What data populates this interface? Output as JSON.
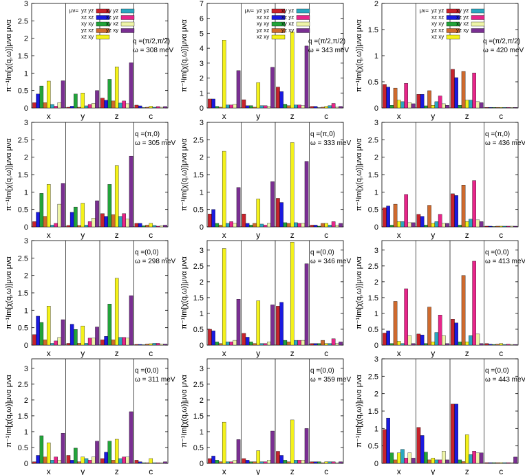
{
  "legend": {
    "header": "μν=",
    "entries": [
      {
        "label": "yz yz",
        "color": "#c8232c"
      },
      {
        "label": "xz xz",
        "color": "#1a1ae0"
      },
      {
        "label": "xy xy",
        "color": "#22a33a"
      },
      {
        "label": "yz xz",
        "color": "#cf6a2e"
      },
      {
        "label": "xz xy",
        "color": "#f4f21a"
      },
      {
        "label": "xy yz",
        "color": "#2aa7c0"
      },
      {
        "label": "xz yz",
        "color": "#e8258a"
      },
      {
        "label": "xy xz",
        "color": "#eef5a8"
      },
      {
        "label": "yz xy",
        "color": "#7a2f92"
      }
    ]
  },
  "chart_data": [
    {
      "type": "bar",
      "row": 0,
      "col": 0,
      "ylabel": "π⁻¹Im[χ(q,ω)]μνα μνα",
      "ylim": [
        0,
        3
      ],
      "yticks": [
        "0",
        "0.5",
        "1",
        "1.5",
        "2",
        "2.5",
        "3"
      ],
      "categories": [
        "x",
        "y",
        "z",
        "c"
      ],
      "annotation": [
        "q =(π/2,π/2)",
        "ω = 308 meV"
      ],
      "legend": "cols",
      "values": [
        [
          0.15,
          0.4,
          0.63,
          0.15,
          0.77,
          0.1,
          0.05,
          0.15,
          0.78
        ],
        [
          0.02,
          0.05,
          0.4,
          0.02,
          0.43,
          0.06,
          0.1,
          0.13,
          0.5
        ],
        [
          0.28,
          0.22,
          0.82,
          0.2,
          1.18,
          0.14,
          0.2,
          0.12,
          1.3
        ],
        [
          0.08,
          0.06,
          0.01,
          0.02,
          0.05,
          0.02,
          0.04,
          0.02,
          0.04
        ]
      ]
    },
    {
      "type": "bar",
      "row": 0,
      "col": 1,
      "ylabel": "π⁻¹Im[χ(q,ω)]μνα μνα",
      "ylim": [
        0,
        7
      ],
      "yticks": [
        "0",
        "1",
        "2",
        "3",
        "4",
        "5",
        "6",
        "7"
      ],
      "categories": [
        "x",
        "y",
        "z",
        "c"
      ],
      "annotation": [
        "q =(π/2,π/2)",
        "ω = 343 meV"
      ],
      "legend": "cols",
      "values": [
        [
          0.6,
          0.6,
          0.1,
          0.05,
          4.55,
          0.2,
          0.2,
          0.25,
          2.5
        ],
        [
          0.55,
          0.15,
          0.15,
          0.05,
          1.7,
          0.15,
          0.15,
          0.1,
          2.72
        ],
        [
          1.4,
          1.1,
          0.25,
          0.15,
          5.1,
          0.2,
          0.2,
          0.15,
          4.15
        ],
        [
          0.1,
          0.1,
          0.02,
          0.05,
          0.1,
          0.15,
          0.3,
          0.05,
          0.1
        ]
      ]
    },
    {
      "type": "bar",
      "row": 0,
      "col": 2,
      "ylabel": "π⁻¹Im[χ(q,ω)]μνα μνα",
      "ylim": [
        0,
        2
      ],
      "yticks": [
        "0",
        "0.5",
        "1",
        "1.5",
        "2"
      ],
      "categories": [
        "x",
        "y",
        "z",
        "c"
      ],
      "annotation": [
        "q =(π/2,π/2)",
        "ω = 420 meV"
      ],
      "legend": "cols",
      "values": [
        [
          0.45,
          0.4,
          0.05,
          0.38,
          0.15,
          0.12,
          0.47,
          0.1,
          0.08
        ],
        [
          0.26,
          0.26,
          0.04,
          0.33,
          0.05,
          0.12,
          0.23,
          0.08,
          0.05
        ],
        [
          0.74,
          0.58,
          0.05,
          0.7,
          0.15,
          0.15,
          0.67,
          0.12,
          0.1
        ],
        [
          0.01,
          0.01,
          0.01,
          0.01,
          0.01,
          0.01,
          0.01,
          0.01,
          0.01
        ]
      ]
    },
    {
      "type": "bar",
      "row": 1,
      "col": 0,
      "ylabel": "π⁻¹Im[χ(q,ω)]μνα μνα",
      "ylim": [
        0,
        3
      ],
      "yticks": [
        "0",
        "0.5",
        "1",
        "1.5",
        "2",
        "2.5",
        "3"
      ],
      "categories": [
        "x",
        "y",
        "z",
        "c"
      ],
      "annotation": [
        "q =(π,0)",
        "ω = 305 meV"
      ],
      "legend": "",
      "values": [
        [
          0.15,
          0.42,
          0.96,
          0.3,
          1.22,
          0.05,
          0.1,
          0.65,
          1.25
        ],
        [
          0.04,
          0.42,
          0.57,
          0.04,
          0.68,
          0.05,
          0.15,
          0.25,
          0.75
        ],
        [
          0.38,
          0.3,
          1.22,
          0.35,
          1.76,
          0.3,
          0.38,
          0.22,
          2.03
        ],
        [
          0.1,
          0.1,
          0.03,
          0.05,
          0.1,
          0.04,
          0.02,
          0.03,
          0.05
        ]
      ]
    },
    {
      "type": "bar",
      "row": 1,
      "col": 1,
      "ylabel": "π⁻¹Im[χ(q,ω)]μνα μνα",
      "ylim": [
        0,
        3
      ],
      "yticks": [
        "0",
        "0.5",
        "1",
        "1.5",
        "2",
        "2.5",
        "3"
      ],
      "categories": [
        "x",
        "y",
        "z",
        "c"
      ],
      "annotation": [
        "q =(π,0)",
        "ω = 333 meV"
      ],
      "legend": "",
      "values": [
        [
          0.37,
          0.5,
          0.1,
          0.05,
          2.17,
          0.1,
          0.15,
          0.1,
          1.13
        ],
        [
          0.37,
          0.1,
          0.05,
          0.1,
          0.8,
          0.08,
          0.05,
          0.1,
          1.3
        ],
        [
          0.82,
          0.7,
          0.12,
          0.1,
          2.42,
          0.12,
          0.1,
          0.1,
          1.88
        ],
        [
          0.05,
          0.05,
          0.02,
          0.1,
          0.1,
          0.05,
          0.15,
          0.05,
          0.1
        ]
      ]
    },
    {
      "type": "bar",
      "row": 1,
      "col": 2,
      "ylabel": "π⁻¹Im[χ(q,ω)]μνα μνα",
      "ylim": [
        0,
        3
      ],
      "yticks": [
        "0",
        "0.5",
        "1",
        "1.5",
        "2",
        "2.5",
        "3"
      ],
      "categories": [
        "x",
        "y",
        "z",
        "c"
      ],
      "annotation": [
        "q =(π,0)",
        "ω = 436 meV"
      ],
      "legend": "",
      "values": [
        [
          0.55,
          0.6,
          0.05,
          0.65,
          0.15,
          0.15,
          0.93,
          0.12,
          0.12
        ],
        [
          0.36,
          0.3,
          0.05,
          0.62,
          0.1,
          0.15,
          0.36,
          0.1,
          0.1
        ],
        [
          0.95,
          0.9,
          0.05,
          1.2,
          0.15,
          0.22,
          1.33,
          0.2,
          0.15
        ],
        [
          0.02,
          0.02,
          0.01,
          0.02,
          0.02,
          0.02,
          0.02,
          0.02,
          0.02
        ]
      ]
    },
    {
      "type": "bar",
      "row": 2,
      "col": 0,
      "ylabel": "π⁻¹Im[χ(q,ω)]μνα μνα",
      "ylim": [
        0,
        3
      ],
      "yticks": [
        "0",
        "0.5",
        "1",
        "1.5",
        "2",
        "2.5",
        "3"
      ],
      "categories": [
        "x",
        "y",
        "z",
        "c"
      ],
      "annotation": [
        "q =(0,0)",
        "ω = 298 meV"
      ],
      "legend": "",
      "values": [
        [
          0.3,
          0.83,
          0.65,
          0.15,
          1.12,
          0.05,
          0.12,
          0.22,
          0.73
        ],
        [
          0.05,
          0.6,
          0.45,
          0.05,
          0.55,
          0.05,
          0.2,
          0.2,
          0.52
        ],
        [
          0.15,
          0.25,
          1.18,
          0.15,
          1.92,
          0.22,
          0.22,
          0.2,
          1.42
        ],
        [
          0.02,
          0.02,
          0.01,
          0.03,
          0.04,
          0.05,
          0.05,
          0.03,
          0.03
        ]
      ]
    },
    {
      "type": "bar",
      "row": 2,
      "col": 1,
      "ylabel": "π⁻¹Im[χ(q,ω)]μνα μνα",
      "ylim": [
        0,
        3.3
      ],
      "yticks": [
        "0",
        "0.5",
        "1",
        "1.5",
        "2",
        "2.5",
        "3"
      ],
      "categories": [
        "x",
        "y",
        "z",
        "c"
      ],
      "annotation": [
        "q =(0,0)",
        "ω = 346 meV"
      ],
      "legend": "",
      "values": [
        [
          0.5,
          0.45,
          0.1,
          0.05,
          3.05,
          0.1,
          0.1,
          0.15,
          1.45
        ],
        [
          0.37,
          0.25,
          0.1,
          0.05,
          1.4,
          0.05,
          0.05,
          0.1,
          1.27
        ],
        [
          1.23,
          1.35,
          0.15,
          0.1,
          3.25,
          0.15,
          0.15,
          0.15,
          2.57
        ],
        [
          0.05,
          0.05,
          0.05,
          0.15,
          0.05,
          0.05,
          0.2,
          0.05,
          0.1
        ]
      ]
    },
    {
      "type": "bar",
      "row": 2,
      "col": 2,
      "ylabel": "π⁻¹Im[χ(q,ω)]μνα μνα",
      "ylim": [
        0,
        3.3
      ],
      "yticks": [
        "0",
        "0.5",
        "1",
        "1.5",
        "2",
        "2.5",
        "3"
      ],
      "categories": [
        "x",
        "y",
        "z",
        "c"
      ],
      "annotation": [
        "q =(0,0)",
        "ω = 413 meV"
      ],
      "legend": "",
      "values": [
        [
          0.38,
          0.45,
          0.05,
          1.38,
          0.12,
          0.05,
          1.78,
          0.3,
          0.05
        ],
        [
          0.35,
          0.32,
          0.05,
          1.2,
          0.1,
          0.4,
          0.95,
          0.3,
          0.05
        ],
        [
          0.82,
          0.7,
          0.1,
          2.2,
          0.1,
          0.3,
          2.65,
          0.35,
          0.05
        ],
        [
          0.05,
          0.03,
          0.02,
          0.03,
          0.05,
          0.02,
          0.03,
          0.02,
          0.02
        ]
      ]
    },
    {
      "type": "bar",
      "row": 3,
      "col": 0,
      "ylabel": "π⁻¹Im[χ(q,ω)]μνα μνα",
      "ylim": [
        0,
        3.3
      ],
      "yticks": [
        "0",
        "0.5",
        "1",
        "1.5",
        "2",
        "2.5",
        "3"
      ],
      "categories": [
        "x",
        "y",
        "z",
        "c"
      ],
      "annotation": [
        "q =(0,0)",
        "ω = 311 meV"
      ],
      "legend": "",
      "values": [
        [
          0.05,
          0.25,
          0.87,
          0.2,
          0.65,
          0.1,
          0.2,
          0.1,
          0.95
        ],
        [
          0.25,
          0.1,
          0.48,
          0.05,
          0.2,
          0.15,
          0.1,
          0.2,
          0.7
        ],
        [
          0.15,
          0.35,
          0.7,
          0.1,
          0.76,
          0.15,
          0.2,
          0.2,
          1.63
        ],
        [
          0.1,
          0.05,
          0.02,
          0.02,
          0.15,
          0.02,
          0.02,
          0.02,
          0.05
        ]
      ]
    },
    {
      "type": "bar",
      "row": 3,
      "col": 1,
      "ylabel": "π⁻¹Im[χ(q,ω)]μνα μνα",
      "ylim": [
        0,
        3.3
      ],
      "yticks": [
        "0",
        "0.5",
        "1",
        "1.5",
        "2",
        "2.5",
        "3"
      ],
      "categories": [
        "x",
        "y",
        "z",
        "c"
      ],
      "annotation": [
        "q =(0,0)",
        "ω = 359 meV"
      ],
      "legend": "",
      "values": [
        [
          0.15,
          0.23,
          0.1,
          0.05,
          1.3,
          0.05,
          0.05,
          0.1,
          0.75
        ],
        [
          0.15,
          0.1,
          0.05,
          0.05,
          0.4,
          0.05,
          0.05,
          0.1,
          1.02
        ],
        [
          0.38,
          0.25,
          0.1,
          0.05,
          1.37,
          0.1,
          0.1,
          0.1,
          1.1
        ],
        [
          0.05,
          0.05,
          0.05,
          0.02,
          0.05,
          0.05,
          0.05,
          0.02,
          0.05
        ]
      ]
    },
    {
      "type": "bar",
      "row": 3,
      "col": 2,
      "ylabel": "π⁻¹Im[χ(q,ω)]μνα μνα",
      "ylim": [
        0,
        3
      ],
      "yticks": [
        "0",
        "0.5",
        "1",
        "1.5",
        "2",
        "2.5",
        "3"
      ],
      "categories": [
        "x",
        "y",
        "z",
        "c"
      ],
      "annotation": [
        "q =(0,0)",
        "ω = 443 meV"
      ],
      "legend": "",
      "values": [
        [
          0.97,
          1.3,
          0.3,
          0.1,
          0.3,
          0.4,
          0.15,
          0.3,
          0.15
        ],
        [
          1.03,
          0.8,
          0.32,
          0.1,
          0.15,
          0.1,
          0.1,
          0.35,
          0.1
        ],
        [
          1.7,
          1.7,
          0.1,
          0.05,
          0.82,
          0.25,
          0.35,
          0.3,
          0.3
        ],
        [
          0.02,
          0.02,
          0.02,
          0.02,
          0.02,
          0.02,
          0.02,
          0.02,
          0.18
        ]
      ]
    }
  ]
}
